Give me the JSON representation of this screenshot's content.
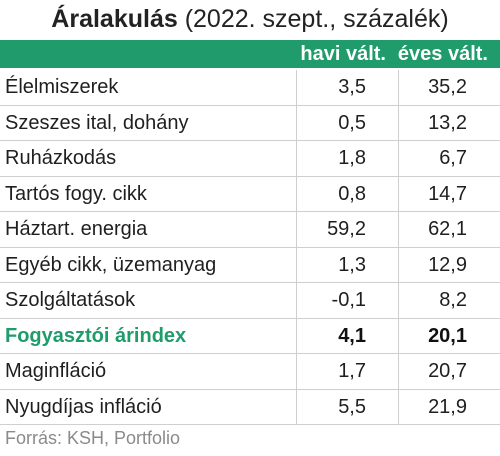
{
  "title": {
    "bold": "Áralakulás",
    "rest": " (2022. szept., százalék)"
  },
  "header": {
    "col1": "havi vált.",
    "col2": "éves vált."
  },
  "rows": [
    {
      "label": "Élelmiszerek",
      "monthly": "3,5",
      "yearly": "35,2"
    },
    {
      "label": "Szeszes ital, dohány",
      "monthly": "0,5",
      "yearly": "13,2"
    },
    {
      "label": "Ruházkodás",
      "monthly": "1,8",
      "yearly": "6,7"
    },
    {
      "label": "Tartós fogy. cikk",
      "monthly": "0,8",
      "yearly": "14,7"
    },
    {
      "label": "Háztart. energia",
      "monthly": "59,2",
      "yearly": "62,1"
    },
    {
      "label": "Egyéb cikk, üzemanyag",
      "monthly": "1,3",
      "yearly": "12,9"
    },
    {
      "label": "Szolgáltatások",
      "monthly": "-0,1",
      "yearly": "8,2"
    },
    {
      "label": "Fogyasztói árindex",
      "monthly": "4,1",
      "yearly": "20,1"
    },
    {
      "label": "Maginfláció",
      "monthly": "1,7",
      "yearly": "20,7"
    },
    {
      "label": "Nyugdíjas infláció",
      "monthly": "5,5",
      "yearly": "21,9"
    }
  ],
  "source": "Forrás: KSH, Portfolio",
  "colors": {
    "accent": "#1f9b6c"
  }
}
